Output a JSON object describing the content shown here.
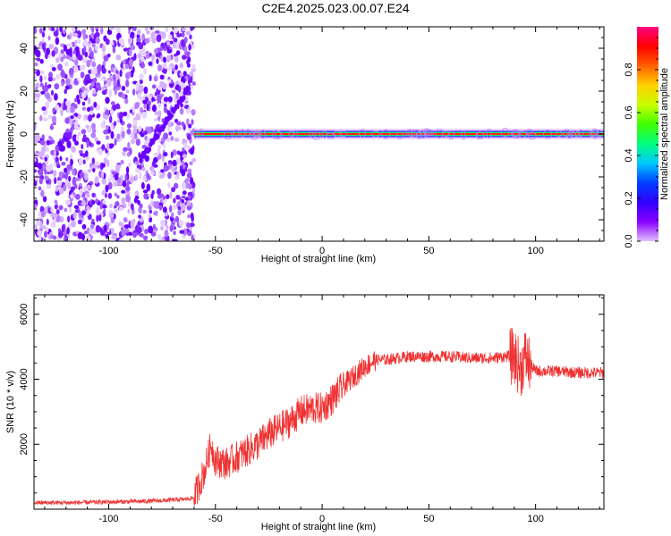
{
  "title": "C2E4.2025.023.00.07.E24",
  "chart_data": [
    {
      "type": "heatmap",
      "xlabel": "Height of straight line (km)",
      "ylabel": "Frequency (Hz)",
      "xlim": [
        -135,
        132
      ],
      "ylim": [
        -50,
        50
      ],
      "xticks": [
        -100,
        -50,
        0,
        50,
        100
      ],
      "yticks": [
        -40,
        -20,
        0,
        20,
        40
      ],
      "noise_region_x": [
        -135,
        -60
      ],
      "signal_frequency_hz": 0,
      "colorbar": {
        "label": "Normalized spectral amplitude",
        "range": [
          0,
          1
        ],
        "ticks": [
          0.0,
          0.2,
          0.4,
          0.6,
          0.8
        ],
        "colors": [
          "#e0c0ff",
          "#8a00ff",
          "#3000ff",
          "#0040ff",
          "#00c8ff",
          "#00ff80",
          "#40ff00",
          "#c8ff00",
          "#ffd000",
          "#ff6000",
          "#ff0000",
          "#ff0080"
        ]
      }
    },
    {
      "type": "line",
      "xlabel": "Height of straight line (km)",
      "ylabel": "SNR (10 * v/v)",
      "xlim": [
        -135,
        132
      ],
      "ylim": [
        0,
        6600
      ],
      "xticks": [
        -100,
        -50,
        0,
        50,
        100
      ],
      "yticks": [
        2000,
        4000,
        6000
      ],
      "color": "#f03030",
      "series": [
        {
          "x": [
            -135,
            -120,
            -100,
            -80,
            -65,
            -60,
            -55,
            -52,
            -50,
            -45,
            -40,
            -35,
            -30,
            -25,
            -20,
            -15,
            -10,
            -5,
            0,
            5,
            10,
            15,
            20,
            25,
            30,
            40,
            50,
            60,
            70,
            80,
            85,
            90,
            93,
            95,
            97,
            100,
            110,
            120,
            132
          ],
          "y": [
            200,
            200,
            220,
            250,
            300,
            350,
            1200,
            2000,
            1500,
            1400,
            1600,
            1800,
            2000,
            2300,
            2500,
            2700,
            3000,
            3100,
            3100,
            3400,
            3800,
            4100,
            4400,
            4600,
            4600,
            4700,
            4700,
            4700,
            4650,
            4650,
            4700,
            4700,
            4300,
            4700,
            4500,
            4250,
            4250,
            4200,
            4200
          ]
        }
      ]
    }
  ]
}
